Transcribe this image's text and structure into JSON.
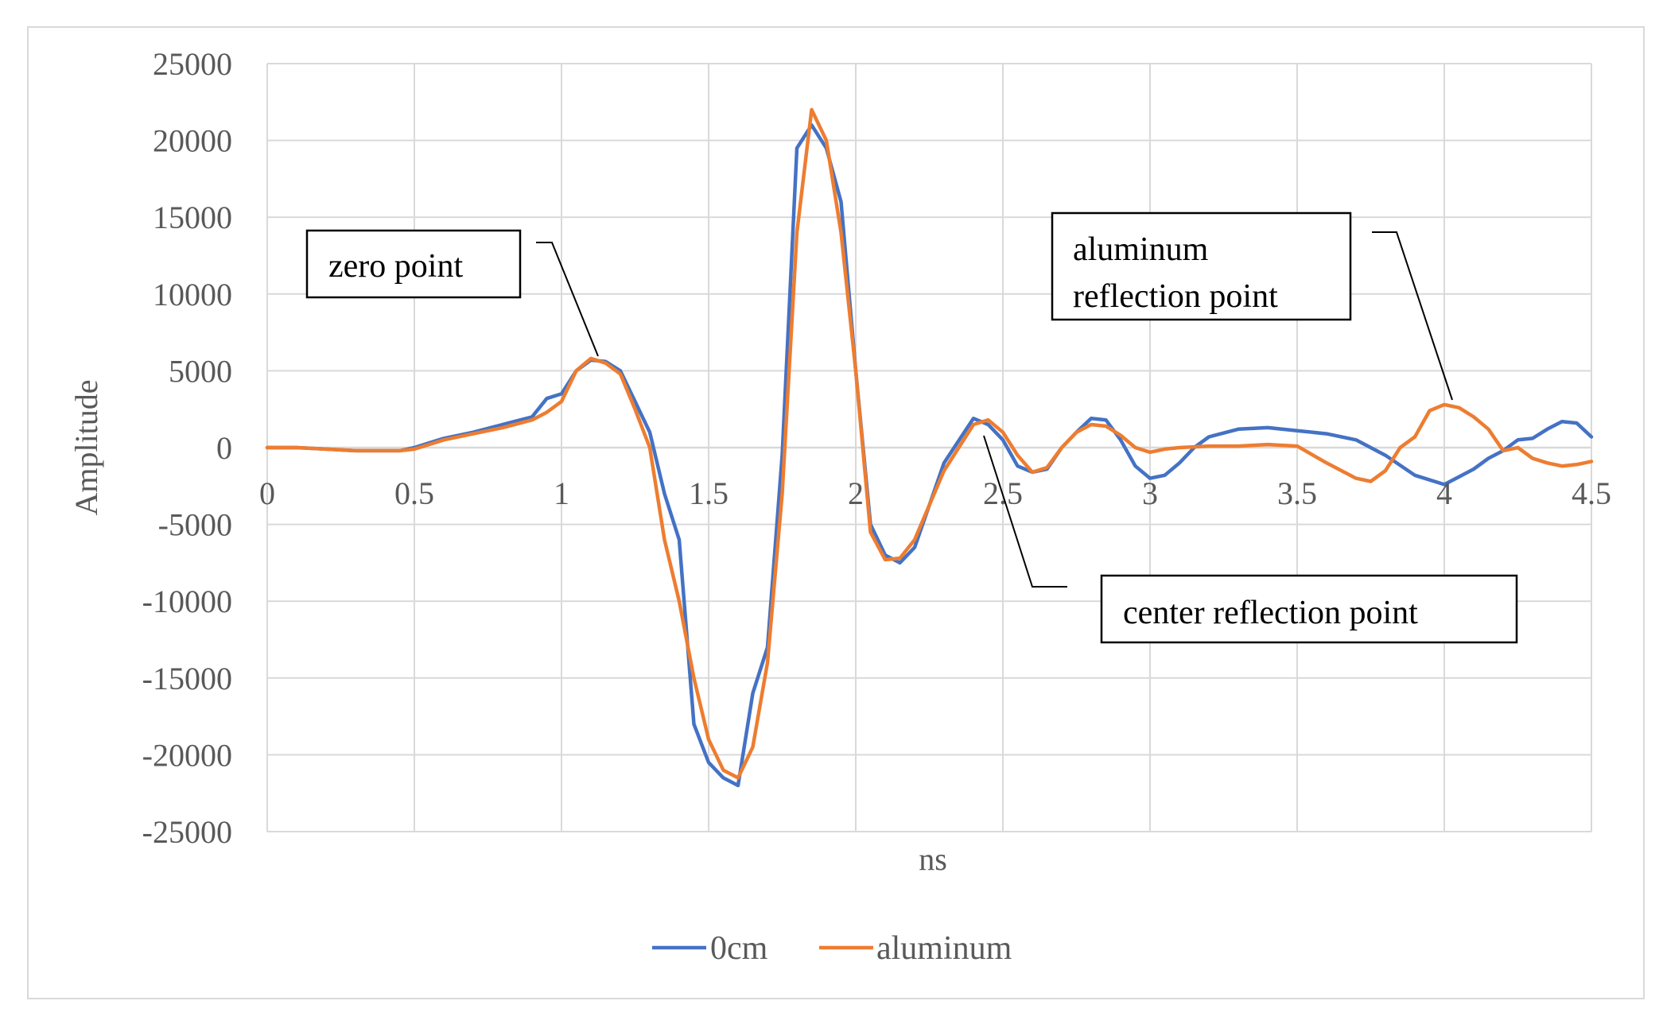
{
  "chart_data": {
    "type": "line",
    "title": "",
    "xlabel": "ns",
    "ylabel": "Amplitude",
    "xlim": [
      0,
      4.5
    ],
    "ylim": [
      -25000,
      25000
    ],
    "x_ticks": [
      "0",
      "0.5",
      "1",
      "1.5",
      "2",
      "2.5",
      "3",
      "3.5",
      "4",
      "4.5"
    ],
    "y_ticks": [
      "25000",
      "20000",
      "15000",
      "10000",
      "5000",
      "0",
      "-5000",
      "-10000",
      "-15000",
      "-20000",
      "-25000"
    ],
    "grid": true,
    "legend_position": "bottom",
    "series": [
      {
        "name": "0cm",
        "color": "#4472c4",
        "x": [
          0,
          0.1,
          0.2,
          0.3,
          0.4,
          0.45,
          0.5,
          0.55,
          0.6,
          0.7,
          0.8,
          0.9,
          0.95,
          1.0,
          1.05,
          1.1,
          1.15,
          1.2,
          1.25,
          1.3,
          1.35,
          1.4,
          1.45,
          1.5,
          1.55,
          1.6,
          1.65,
          1.7,
          1.75,
          1.8,
          1.85,
          1.9,
          1.95,
          2.0,
          2.05,
          2.1,
          2.15,
          2.2,
          2.3,
          2.4,
          2.45,
          2.5,
          2.55,
          2.6,
          2.65,
          2.7,
          2.75,
          2.8,
          2.85,
          2.9,
          2.95,
          3.0,
          3.05,
          3.1,
          3.15,
          3.2,
          3.3,
          3.4,
          3.5,
          3.6,
          3.7,
          3.8,
          3.9,
          4.0,
          4.05,
          4.1,
          4.15,
          4.2,
          4.25,
          4.3,
          4.35,
          4.4,
          4.45,
          4.5
        ],
        "values": [
          0,
          0,
          -100,
          -200,
          -200,
          -200,
          0,
          300,
          600,
          1000,
          1500,
          2000,
          3200,
          3500,
          5000,
          5700,
          5600,
          5000,
          3000,
          1000,
          -3000,
          -6000,
          -18000,
          -20500,
          -21500,
          -22000,
          -16000,
          -13000,
          -500,
          19500,
          21000,
          19500,
          16000,
          5000,
          -5000,
          -7000,
          -7500,
          -6500,
          -1000,
          1900,
          1500,
          500,
          -1200,
          -1600,
          -1400,
          0,
          1000,
          1900,
          1800,
          500,
          -1200,
          -2000,
          -1800,
          -1000,
          0,
          700,
          1200,
          1300,
          1100,
          900,
          500,
          -500,
          -1800,
          -2400,
          -1900,
          -1400,
          -700,
          -200,
          500,
          600,
          1200,
          1700,
          1600,
          700
        ]
      },
      {
        "name": "aluminum",
        "color": "#ed7d31",
        "x": [
          0,
          0.1,
          0.2,
          0.3,
          0.4,
          0.45,
          0.5,
          0.55,
          0.6,
          0.7,
          0.8,
          0.9,
          0.95,
          1.0,
          1.05,
          1.1,
          1.15,
          1.2,
          1.25,
          1.3,
          1.35,
          1.4,
          1.45,
          1.5,
          1.55,
          1.6,
          1.65,
          1.7,
          1.75,
          1.8,
          1.85,
          1.9,
          1.95,
          2.0,
          2.05,
          2.1,
          2.15,
          2.2,
          2.3,
          2.4,
          2.45,
          2.5,
          2.55,
          2.6,
          2.65,
          2.7,
          2.75,
          2.8,
          2.85,
          2.9,
          2.95,
          3.0,
          3.05,
          3.1,
          3.2,
          3.3,
          3.4,
          3.5,
          3.6,
          3.7,
          3.75,
          3.8,
          3.85,
          3.9,
          3.95,
          4.0,
          4.05,
          4.1,
          4.15,
          4.2,
          4.25,
          4.3,
          4.35,
          4.4,
          4.45,
          4.5
        ],
        "values": [
          0,
          0,
          -100,
          -200,
          -200,
          -200,
          -100,
          200,
          500,
          900,
          1300,
          1800,
          2300,
          3000,
          5000,
          5800,
          5500,
          4800,
          2500,
          0,
          -6000,
          -10000,
          -15000,
          -19000,
          -21000,
          -21500,
          -19500,
          -14000,
          -3000,
          14000,
          22000,
          20000,
          14000,
          5000,
          -5500,
          -7300,
          -7200,
          -6000,
          -1500,
          1500,
          1800,
          1000,
          -500,
          -1600,
          -1300,
          0,
          1000,
          1500,
          1400,
          800,
          0,
          -300,
          -100,
          0,
          100,
          100,
          200,
          100,
          -1000,
          -2000,
          -2200,
          -1500,
          0,
          700,
          2400,
          2800,
          2600,
          2000,
          1200,
          -200,
          0,
          -700,
          -1000,
          -1200,
          -1100,
          -900
        ]
      }
    ],
    "annotations": [
      {
        "text": "zero point"
      },
      {
        "text": "aluminum",
        "text2": "reflection point"
      },
      {
        "text": "center reflection point"
      }
    ]
  }
}
